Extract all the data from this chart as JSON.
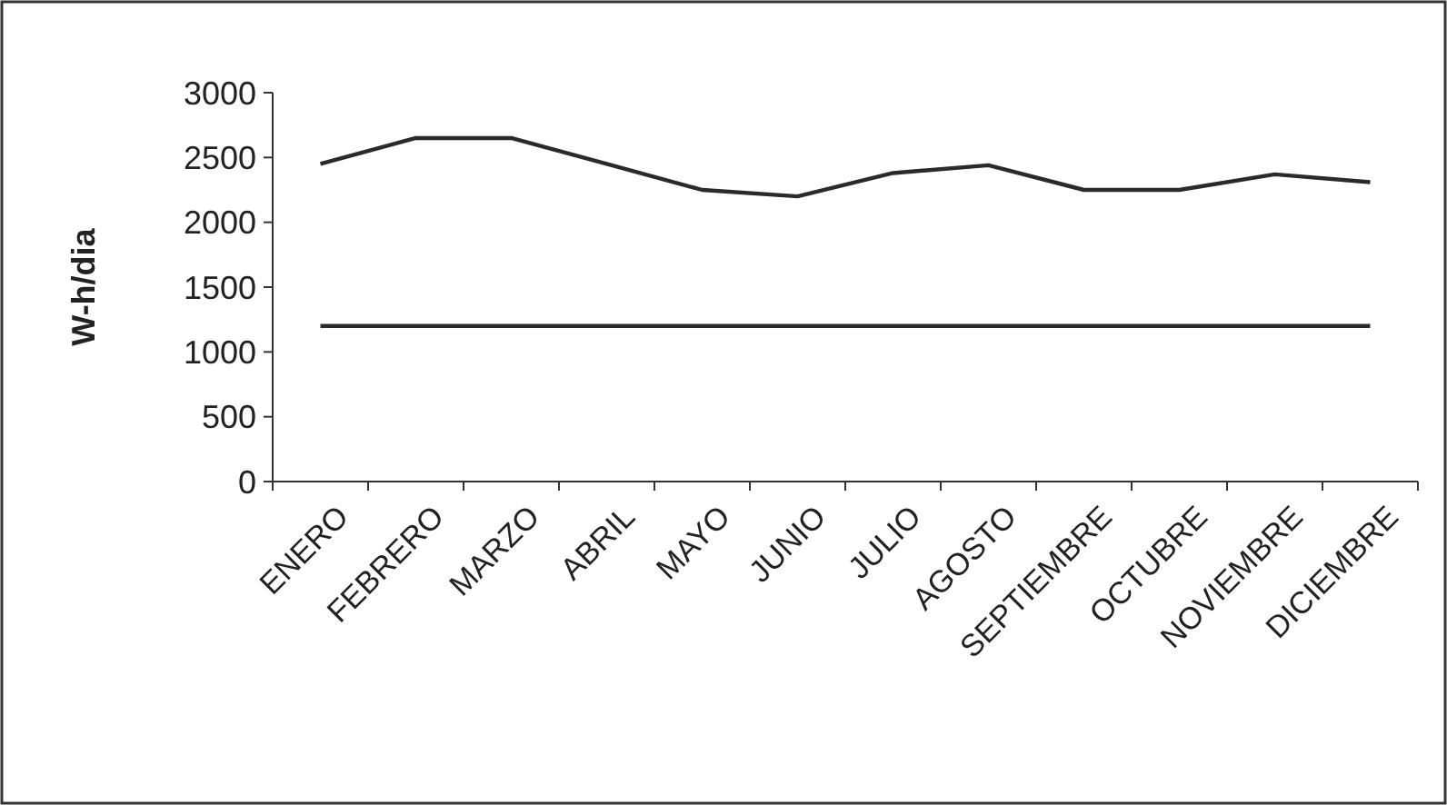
{
  "chart_data": {
    "type": "line",
    "ylabel": "W-h/dia",
    "categories": [
      "ENERO",
      "FEBRERO",
      "MARZO",
      "ABRIL",
      "MAYO",
      "JUNIO",
      "JULIO",
      "AGOSTO",
      "SEPTIEMBRE",
      "OCTUBRE",
      "NOVIEMBRE",
      "DICIEMBRE"
    ],
    "series": [
      {
        "color": "#2a2a2a",
        "values": [
          2450,
          2650,
          2650,
          2450,
          2250,
          2200,
          2380,
          2440,
          2250,
          2250,
          2370,
          2310
        ]
      },
      {
        "color": "#2a2a2a",
        "values": [
          1200,
          1200,
          1200,
          1200,
          1200,
          1200,
          1200,
          1200,
          1200,
          1200,
          1200,
          1200
        ]
      }
    ],
    "ylim": [
      0,
      3000
    ],
    "yticks": [
      0,
      500,
      1000,
      1500,
      2000,
      2500,
      3000
    ],
    "grid": false,
    "marker": "none",
    "line_style": "solid"
  }
}
